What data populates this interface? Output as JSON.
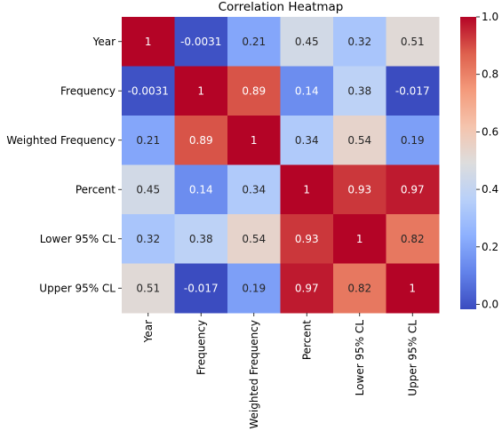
{
  "chart_data": {
    "type": "heatmap",
    "title": "Correlation Heatmap",
    "xlabel": "",
    "ylabel": "",
    "categories": [
      "Year",
      "Frequency",
      "Weighted Frequency",
      "Percent",
      "Lower 95% CL",
      "Upper 95% CL"
    ],
    "matrix": [
      [
        1,
        -0.0031,
        0.21,
        0.45,
        0.32,
        0.51
      ],
      [
        -0.0031,
        1,
        0.89,
        0.14,
        0.38,
        -0.017
      ],
      [
        0.21,
        0.89,
        1,
        0.34,
        0.54,
        0.19
      ],
      [
        0.45,
        0.14,
        0.34,
        1,
        0.93,
        0.97
      ],
      [
        0.32,
        0.38,
        0.54,
        0.93,
        1,
        0.82
      ],
      [
        0.51,
        -0.017,
        0.19,
        0.97,
        0.82,
        1
      ]
    ],
    "cell_labels": [
      [
        "1",
        "-0.0031",
        "0.21",
        "0.45",
        "0.32",
        "0.51"
      ],
      [
        "-0.0031",
        "1",
        "0.89",
        "0.14",
        "0.38",
        "-0.017"
      ],
      [
        "0.21",
        "0.89",
        "1",
        "0.34",
        "0.54",
        "0.19"
      ],
      [
        "0.45",
        "0.14",
        "0.34",
        "1",
        "0.93",
        "0.97"
      ],
      [
        "0.32",
        "0.38",
        "0.54",
        "0.93",
        "1",
        "0.82"
      ],
      [
        "0.51",
        "-0.017",
        "0.19",
        "0.97",
        "0.82",
        "1"
      ]
    ],
    "colormap": "coolwarm",
    "colorbar": {
      "range": [
        -0.017,
        1
      ],
      "ticks": [
        0.0,
        0.2,
        0.4,
        0.6,
        0.8,
        1.0
      ],
      "tick_labels": [
        "0.0",
        "0.2",
        "0.4",
        "0.6",
        "0.8",
        "1.0"
      ]
    },
    "grid": false,
    "legend": "right"
  }
}
